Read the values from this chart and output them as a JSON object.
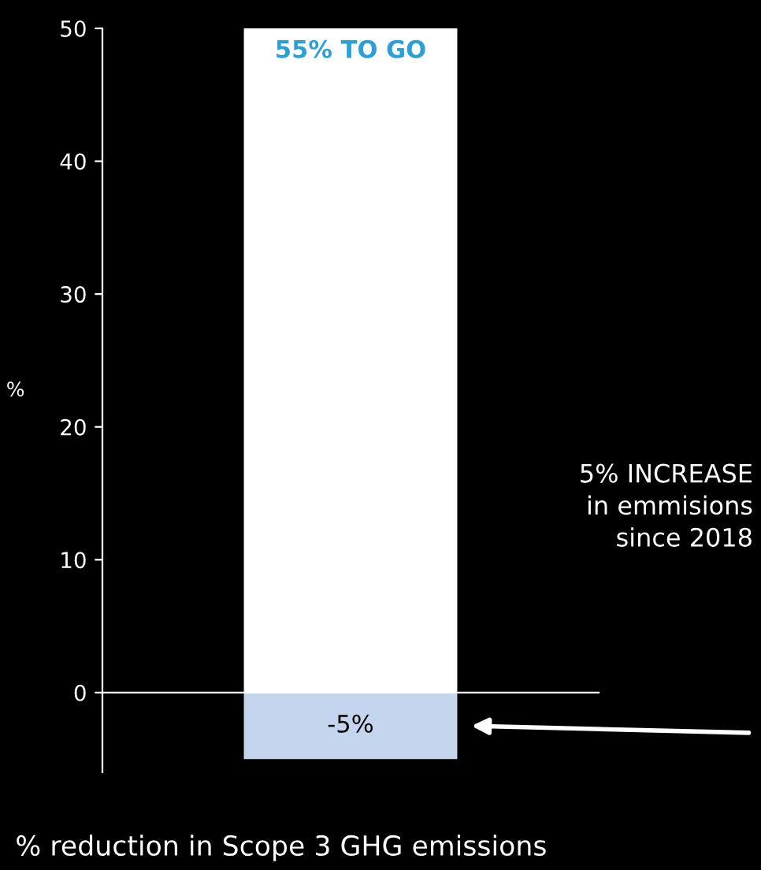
{
  "chart_data": {
    "type": "bar",
    "title": "% reduction in Scope 3 GHG emissions",
    "ylabel": "%",
    "categories": [
      null
    ],
    "stacked": true,
    "series": [
      {
        "color": "#ffffff",
        "values": [
          50
        ]
      },
      {
        "color": "#c5d5ee",
        "values": [
          -5
        ],
        "value_labels": [
          "-5%"
        ]
      }
    ],
    "ylim": [
      -6,
      50
    ],
    "yticks": [
      0,
      10,
      20,
      30,
      40,
      50
    ],
    "annotations": [
      "55% TO GO",
      "5% INCREASE\nin emmisions\nsince 2018"
    ]
  }
}
